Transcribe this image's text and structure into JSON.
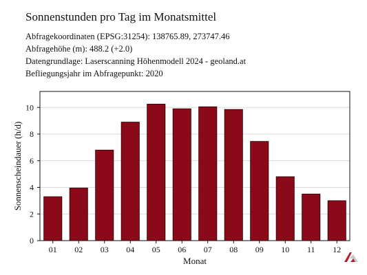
{
  "header": {
    "title": "Sonnenstunden pro Tag im Monatsmittel",
    "meta_lines": [
      "Abfragekoordinaten (EPSG:31254): 138765.89, 273747.46",
      "Abfragehöhe (m): 488.2 (+2.0)",
      "Datengrundlage: Laserscanning Höhenmodell 2024 - geoland.at",
      "Befliegungsjahr im Abfragepunkt: 2020"
    ]
  },
  "chart_data": {
    "type": "bar",
    "title": "Sonnenstunden pro Tag im Monatsmittel",
    "xlabel": "Monat",
    "ylabel": "Sonnenscheindauer (h/d)",
    "categories": [
      "01",
      "02",
      "03",
      "04",
      "05",
      "06",
      "07",
      "08",
      "09",
      "10",
      "11",
      "12"
    ],
    "values": [
      3.3,
      3.95,
      6.8,
      8.9,
      10.25,
      9.9,
      10.05,
      9.85,
      7.45,
      4.8,
      3.5,
      3.0
    ],
    "ylim": [
      0,
      11.2
    ],
    "yticks": [
      0,
      2,
      4,
      6,
      8,
      10
    ],
    "grid": "horizontal",
    "legend": "none",
    "colors": {
      "bar": "#8b0a1a",
      "bar_edge": "#2a0005",
      "grid": "#d9d9d9"
    }
  },
  "logo": {
    "icon": "geoland-logo-icon",
    "color": "#b02034"
  }
}
